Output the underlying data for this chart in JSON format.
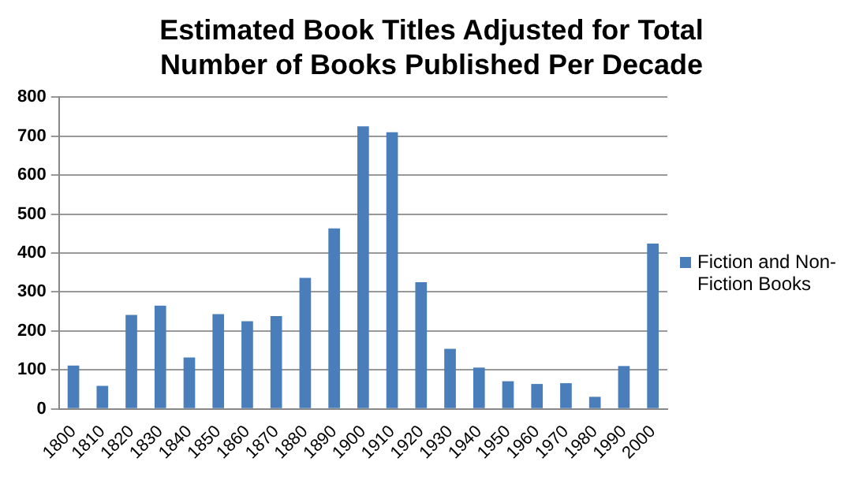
{
  "chart_data": {
    "type": "bar",
    "title": "Estimated Book Titles Adjusted for Total Number of Books Published Per Decade",
    "categories": [
      "1800",
      "1810",
      "1820",
      "1830",
      "1840",
      "1850",
      "1860",
      "1870",
      "1880",
      "1890",
      "1900",
      "1910",
      "1920",
      "1930",
      "1940",
      "1950",
      "1960",
      "1970",
      "1980",
      "1990",
      "2000"
    ],
    "series": [
      {
        "name": "Fiction and Non-Fiction Books",
        "color": "#4a7ebb",
        "values": [
          111,
          59,
          241,
          265,
          132,
          243,
          225,
          238,
          336,
          463,
          725,
          710,
          325,
          154,
          106,
          71,
          64,
          66,
          31,
          110,
          424
        ]
      }
    ],
    "ylim": [
      0,
      800
    ],
    "yticks": [
      0,
      100,
      200,
      300,
      400,
      500,
      600,
      700,
      800
    ],
    "grid": "y",
    "legend": "right"
  }
}
